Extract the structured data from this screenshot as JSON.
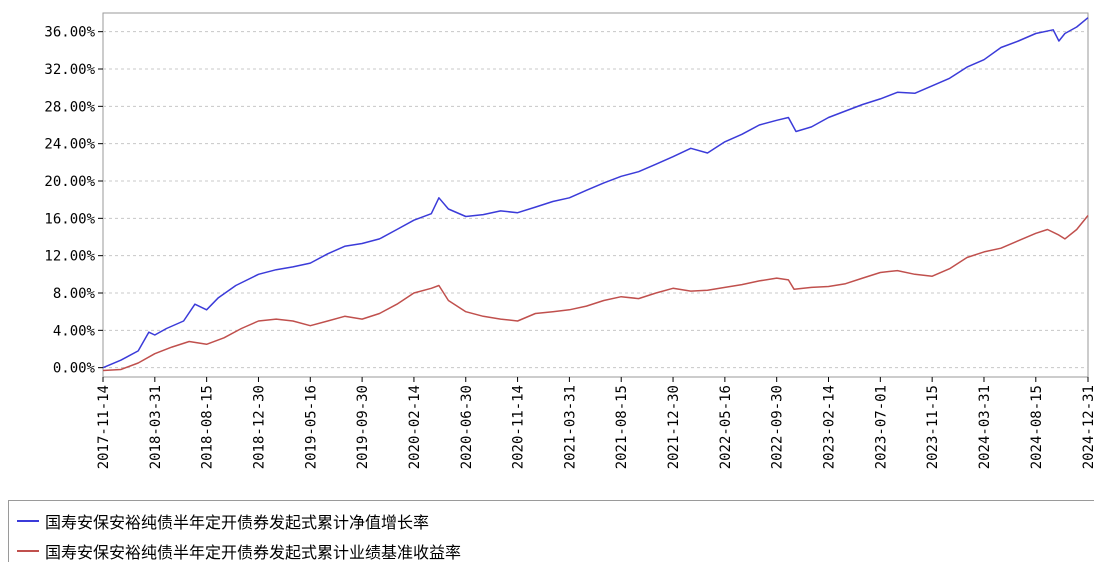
{
  "chart_data": {
    "type": "line",
    "title": "",
    "xlabel": "",
    "ylabel": "",
    "ylim": [
      -1,
      38
    ],
    "y_ticks": [
      "0.00%",
      "4.00%",
      "8.00%",
      "12.00%",
      "16.00%",
      "20.00%",
      "24.00%",
      "28.00%",
      "32.00%",
      "36.00%"
    ],
    "y_tick_values": [
      0,
      4,
      8,
      12,
      16,
      20,
      24,
      28,
      32,
      36
    ],
    "x_ticks": [
      "2017-11-14",
      "2018-03-31",
      "2018-08-15",
      "2018-12-30",
      "2019-05-16",
      "2019-09-30",
      "2020-02-14",
      "2020-06-30",
      "2020-11-14",
      "2021-03-31",
      "2021-08-15",
      "2021-12-30",
      "2022-05-16",
      "2022-09-30",
      "2023-02-14",
      "2023-07-01",
      "2023-11-15",
      "2024-03-31",
      "2024-08-15",
      "2024-12-31"
    ],
    "grid": true,
    "legend_position": "bottom",
    "series": [
      {
        "name": "国寿安保安裕纯债半年定开债券发起式累计净值增长率",
        "color": "#3b3bd9",
        "x": [
          "2017-11-14",
          "2017-12-31",
          "2018-02-15",
          "2018-03-15",
          "2018-03-31",
          "2018-05-01",
          "2018-06-15",
          "2018-07-15",
          "2018-08-15",
          "2018-09-15",
          "2018-10-31",
          "2018-12-30",
          "2019-02-15",
          "2019-03-31",
          "2019-05-16",
          "2019-07-01",
          "2019-08-15",
          "2019-09-30",
          "2019-11-15",
          "2019-12-31",
          "2020-02-14",
          "2020-03-31",
          "2020-04-20",
          "2020-05-15",
          "2020-06-30",
          "2020-08-15",
          "2020-09-30",
          "2020-11-14",
          "2020-12-31",
          "2021-02-15",
          "2021-03-31",
          "2021-05-15",
          "2021-06-30",
          "2021-08-15",
          "2021-09-30",
          "2021-11-15",
          "2021-12-30",
          "2022-02-15",
          "2022-03-31",
          "2022-05-16",
          "2022-06-30",
          "2022-08-15",
          "2022-09-30",
          "2022-10-31",
          "2022-11-20",
          "2022-12-31",
          "2023-02-14",
          "2023-03-31",
          "2023-05-15",
          "2023-07-01",
          "2023-08-15",
          "2023-09-30",
          "2023-11-15",
          "2023-12-31",
          "2024-02-15",
          "2024-03-31",
          "2024-05-15",
          "2024-06-30",
          "2024-08-15",
          "2024-09-30",
          "2024-10-15",
          "2024-10-31",
          "2024-12-01",
          "2024-12-31"
        ],
        "values": [
          0.0,
          0.8,
          1.8,
          3.8,
          3.5,
          4.2,
          5.0,
          6.8,
          6.2,
          7.5,
          8.8,
          10.0,
          10.5,
          10.8,
          11.2,
          12.2,
          13.0,
          13.3,
          13.8,
          14.8,
          15.8,
          16.5,
          18.2,
          17.0,
          16.2,
          16.4,
          16.8,
          16.6,
          17.2,
          17.8,
          18.2,
          19.0,
          19.8,
          20.5,
          21.0,
          21.8,
          22.6,
          23.5,
          23.0,
          24.2,
          25.0,
          26.0,
          26.5,
          26.8,
          25.3,
          25.8,
          26.8,
          27.5,
          28.2,
          28.8,
          29.5,
          29.4,
          30.2,
          31.0,
          32.2,
          33.0,
          34.3,
          35.0,
          35.8,
          36.2,
          35.0,
          35.8,
          36.5,
          37.5
        ]
      },
      {
        "name": "国寿安保安裕纯债半年定开债券发起式累计业绩基准收益率",
        "color": "#c0504d",
        "x": [
          "2017-11-14",
          "2017-12-31",
          "2018-02-15",
          "2018-03-31",
          "2018-05-15",
          "2018-06-30",
          "2018-08-15",
          "2018-09-30",
          "2018-11-15",
          "2018-12-30",
          "2019-02-15",
          "2019-03-31",
          "2019-05-16",
          "2019-07-01",
          "2019-08-15",
          "2019-09-30",
          "2019-11-15",
          "2019-12-31",
          "2020-02-14",
          "2020-03-31",
          "2020-04-20",
          "2020-05-15",
          "2020-06-30",
          "2020-08-15",
          "2020-09-30",
          "2020-11-14",
          "2020-12-31",
          "2021-02-15",
          "2021-03-31",
          "2021-05-15",
          "2021-06-30",
          "2021-08-15",
          "2021-09-30",
          "2021-11-15",
          "2021-12-30",
          "2022-02-15",
          "2022-03-31",
          "2022-05-16",
          "2022-06-30",
          "2022-08-15",
          "2022-09-30",
          "2022-10-31",
          "2022-11-15",
          "2022-12-31",
          "2023-02-14",
          "2023-03-31",
          "2023-05-15",
          "2023-07-01",
          "2023-08-15",
          "2023-09-30",
          "2023-11-15",
          "2023-12-31",
          "2024-02-15",
          "2024-03-31",
          "2024-05-15",
          "2024-06-30",
          "2024-08-15",
          "2024-09-15",
          "2024-10-15",
          "2024-10-31",
          "2024-12-01",
          "2024-12-31"
        ],
        "values": [
          -0.3,
          -0.2,
          0.5,
          1.5,
          2.2,
          2.8,
          2.5,
          3.2,
          4.2,
          5.0,
          5.2,
          5.0,
          4.5,
          5.0,
          5.5,
          5.2,
          5.8,
          6.8,
          8.0,
          8.5,
          8.8,
          7.2,
          6.0,
          5.5,
          5.2,
          5.0,
          5.8,
          6.0,
          6.2,
          6.6,
          7.2,
          7.6,
          7.4,
          8.0,
          8.5,
          8.2,
          8.3,
          8.6,
          8.9,
          9.3,
          9.6,
          9.4,
          8.4,
          8.6,
          8.7,
          9.0,
          9.6,
          10.2,
          10.4,
          10.0,
          9.8,
          10.6,
          11.8,
          12.4,
          12.8,
          13.6,
          14.4,
          14.8,
          14.2,
          13.8,
          14.8,
          16.3
        ]
      }
    ]
  }
}
